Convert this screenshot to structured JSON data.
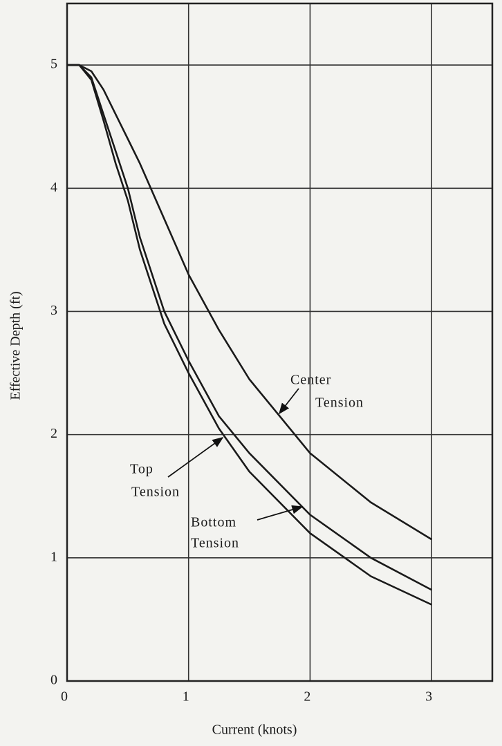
{
  "chart_data": {
    "type": "line",
    "xlabel": "Current (knots)",
    "ylabel": "Effective Depth (ft)",
    "x": [
      0,
      0.1,
      0.2,
      0.3,
      0.4,
      0.5,
      0.6,
      0.8,
      1,
      1.25,
      1.5,
      2,
      2.5,
      3
    ],
    "series": [
      {
        "name": "Center Tension",
        "color": "#1a1a1a",
        "values": [
          5,
          5,
          4.95,
          4.8,
          4.6,
          4.4,
          4.2,
          3.75,
          3.3,
          2.85,
          2.45,
          1.85,
          1.45,
          1.15
        ]
      },
      {
        "name": "Top Tension",
        "color": "#1a1a1a",
        "values": [
          5,
          5,
          4.9,
          4.6,
          4.3,
          4.0,
          3.6,
          3.0,
          2.6,
          2.15,
          1.85,
          1.35,
          1.0,
          0.74
        ]
      },
      {
        "name": "Bottom Tension",
        "color": "#1a1a1a",
        "values": [
          5,
          5,
          4.88,
          4.55,
          4.2,
          3.9,
          3.5,
          2.9,
          2.5,
          2.05,
          1.7,
          1.2,
          0.85,
          0.62
        ]
      }
    ],
    "annotations": [
      {
        "lines": [
          "Center",
          "Tension"
        ]
      },
      {
        "lines": [
          "Top",
          "Tension"
        ]
      },
      {
        "lines": [
          "Bottom",
          "Tension"
        ]
      }
    ],
    "xlim": [
      0,
      3.5
    ],
    "ylim": [
      0,
      5.5
    ],
    "xticks": [
      0,
      1,
      2,
      3
    ],
    "yticks": [
      0,
      1,
      2,
      3,
      4,
      5
    ],
    "grid": true
  }
}
